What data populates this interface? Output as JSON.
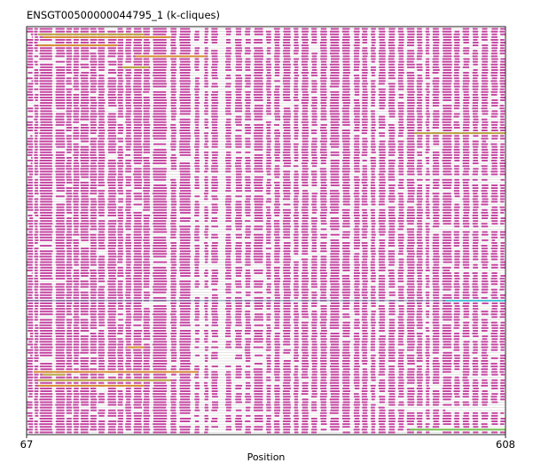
{
  "chart_data": {
    "type": "alignment-track-plot",
    "title": "ENSGT00500000044795_1 (k-cliques)",
    "xlabel": "Position",
    "ylabel": "",
    "xlim": [
      67,
      608
    ],
    "x_ticks": [
      "67",
      "608"
    ],
    "row_count": 148,
    "grid": false,
    "legend": "none",
    "main_color": "#c2409f",
    "gap_color": "#dddddd",
    "highlight_colors": {
      "olive": "#b5a13a",
      "orange": "#d48a2e",
      "green": "#6fbf4a",
      "cyan": "#46c4d8"
    },
    "column_blocks": [
      [
        68,
        74
      ],
      [
        76,
        80
      ],
      [
        82,
        96
      ],
      [
        100,
        110
      ],
      [
        112,
        118
      ],
      [
        120,
        126
      ],
      [
        128,
        137
      ],
      [
        139,
        146
      ],
      [
        148,
        155
      ],
      [
        159,
        168
      ],
      [
        170,
        176
      ],
      [
        179,
        185
      ],
      [
        188,
        197
      ],
      [
        199,
        206
      ],
      [
        210,
        225
      ],
      [
        230,
        236
      ],
      [
        240,
        252
      ],
      [
        257,
        262
      ],
      [
        268,
        272
      ],
      [
        276,
        283
      ],
      [
        292,
        298
      ],
      [
        303,
        310
      ],
      [
        314,
        320
      ],
      [
        324,
        334
      ],
      [
        338,
        343
      ],
      [
        347,
        353
      ],
      [
        357,
        365
      ],
      [
        369,
        374
      ],
      [
        378,
        385
      ],
      [
        389,
        395
      ],
      [
        399,
        406
      ],
      [
        410,
        420
      ],
      [
        424,
        432
      ],
      [
        437,
        443
      ],
      [
        446,
        452
      ],
      [
        456,
        461
      ],
      [
        465,
        472
      ],
      [
        476,
        483
      ],
      [
        487,
        493
      ],
      [
        497,
        505
      ],
      [
        508,
        514
      ],
      [
        518,
        522
      ],
      [
        526,
        533
      ],
      [
        537,
        547
      ],
      [
        550,
        556
      ],
      [
        560,
        567
      ],
      [
        571,
        577
      ],
      [
        581,
        588
      ],
      [
        592,
        599
      ],
      [
        602,
        607
      ]
    ],
    "highlights": [
      {
        "row": 2,
        "start": 80,
        "end": 200,
        "color": "olive"
      },
      {
        "row": 3,
        "start": 85,
        "end": 230,
        "color": "orange"
      },
      {
        "row": 6,
        "start": 80,
        "end": 170,
        "color": "orange"
      },
      {
        "row": 10,
        "start": 190,
        "end": 270,
        "color": "orange"
      },
      {
        "row": 14,
        "start": 175,
        "end": 205,
        "color": "olive"
      },
      {
        "row": 38,
        "start": 505,
        "end": 608,
        "color": "olive"
      },
      {
        "row": 99,
        "start": 540,
        "end": 608,
        "color": "cyan"
      },
      {
        "row": 116,
        "start": 180,
        "end": 200,
        "color": "orange"
      },
      {
        "row": 125,
        "start": 75,
        "end": 260,
        "color": "orange"
      },
      {
        "row": 126,
        "start": 85,
        "end": 110,
        "color": "olive"
      },
      {
        "row": 128,
        "start": 80,
        "end": 230,
        "color": "olive"
      },
      {
        "row": 130,
        "start": 80,
        "end": 200,
        "color": "orange"
      },
      {
        "row": 146,
        "start": 500,
        "end": 608,
        "color": "green"
      }
    ],
    "separators": [
      {
        "row": 99,
        "start": 67,
        "end": 608,
        "color": "#6a8fa8"
      }
    ]
  }
}
